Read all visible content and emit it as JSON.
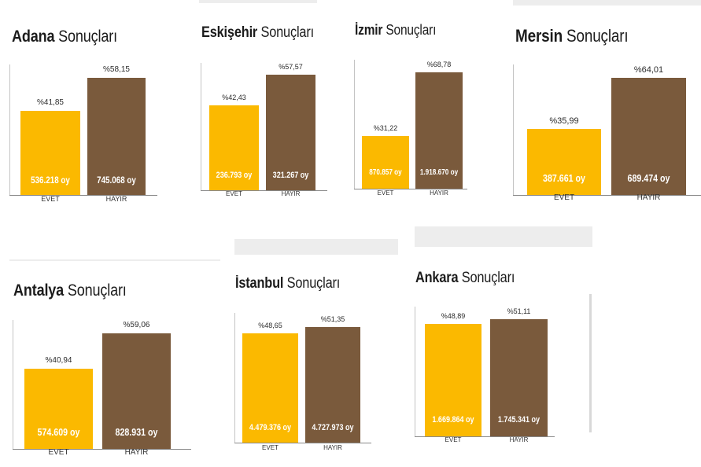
{
  "chart_data": [
    {
      "type": "bar",
      "city": "Adana",
      "title_suffix": "Sonuçları",
      "categories": [
        "EVET",
        "HAYIR"
      ],
      "percent_labels": [
        "%41,85",
        "%58,15"
      ],
      "vote_labels": [
        "536.218 oy",
        "745.068 oy"
      ],
      "values": [
        41.85,
        58.15
      ],
      "ylim": [
        0,
        60
      ]
    },
    {
      "type": "bar",
      "city": "Eskişehir",
      "title_suffix": "Sonuçları",
      "categories": [
        "EVET",
        "HAYIR"
      ],
      "percent_labels": [
        "%42,43",
        "%57,57"
      ],
      "vote_labels": [
        "236.793 oy",
        "321.267 oy"
      ],
      "values": [
        42.43,
        57.57
      ],
      "ylim": [
        0,
        60
      ]
    },
    {
      "type": "bar",
      "city": "İzmir",
      "title_suffix": "Sonuçları",
      "categories": [
        "EVET",
        "HAYIR"
      ],
      "percent_labels": [
        "%31,22",
        "%68,78"
      ],
      "vote_labels": [
        "870.857 oy",
        "1.918.670 oy"
      ],
      "values": [
        31.22,
        68.78
      ],
      "ylim": [
        0,
        72
      ]
    },
    {
      "type": "bar",
      "city": "Mersin",
      "title_suffix": "Sonuçları",
      "categories": [
        "EVET",
        "HAYIR"
      ],
      "percent_labels": [
        "%35,99",
        "%64,01"
      ],
      "vote_labels": [
        "387.661 oy",
        "689.474 oy"
      ],
      "values": [
        35.99,
        64.01
      ],
      "ylim": [
        0,
        65
      ]
    },
    {
      "type": "bar",
      "city": "Antalya",
      "title_suffix": "Sonuçları",
      "categories": [
        "EVET",
        "HAYIR"
      ],
      "percent_labels": [
        "%40,94",
        "%59,06"
      ],
      "vote_labels": [
        "574.609 oy",
        "828.931 oy"
      ],
      "values": [
        40.94,
        59.06
      ],
      "ylim": [
        0,
        60
      ]
    },
    {
      "type": "bar",
      "city": "İstanbul",
      "title_suffix": "Sonuçları",
      "categories": [
        "EVET",
        "HAYIR"
      ],
      "percent_labels": [
        "%48,65",
        "%51,35"
      ],
      "vote_labels": [
        "4.479.376 oy",
        "4.727.973 oy"
      ],
      "values": [
        48.65,
        51.35
      ],
      "ylim": [
        0,
        51.35
      ]
    },
    {
      "type": "bar",
      "city": "Ankara",
      "title_suffix": "Sonuçları",
      "categories": [
        "EVET",
        "HAYIR"
      ],
      "percent_labels": [
        "%48,89",
        "%51,11"
      ],
      "vote_labels": [
        "1.669.864 oy",
        "1.745.341 oy"
      ],
      "values": [
        48.89,
        51.11
      ],
      "ylim": [
        0,
        51.11
      ]
    }
  ],
  "colors": {
    "evet": "#fbb900",
    "hayir": "#7a5a3c"
  }
}
